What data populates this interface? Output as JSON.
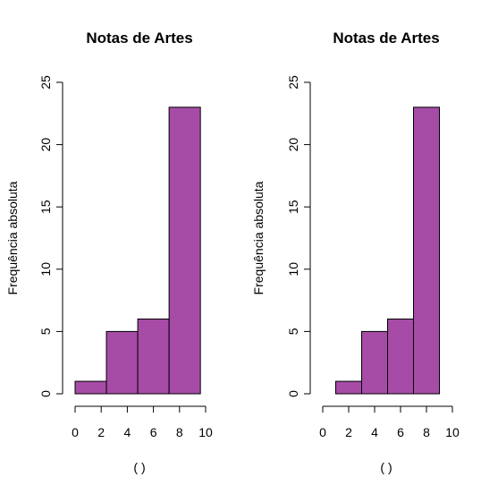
{
  "chart_data": [
    {
      "type": "bar",
      "title": "Notas de Artes",
      "xlabel": "( )",
      "ylabel": "Frequência absoluta",
      "bins": [
        {
          "from": 0,
          "to": 2.4,
          "value": 1
        },
        {
          "from": 2.4,
          "to": 4.8,
          "value": 5
        },
        {
          "from": 4.8,
          "to": 7.2,
          "value": 6
        },
        {
          "from": 7.2,
          "to": 9.6,
          "value": 23
        }
      ],
      "xlim": [
        0,
        10
      ],
      "ylim": [
        0,
        25
      ],
      "xticks": [
        0,
        2,
        4,
        6,
        8,
        10
      ],
      "yticks": [
        0,
        5,
        10,
        15,
        20,
        25
      ],
      "bar_color": "#a64ca6",
      "grid": false
    },
    {
      "type": "bar",
      "title": "Notas de Artes",
      "xlabel": "( )",
      "ylabel": "Frequência absoluta",
      "bins": [
        {
          "from": 1,
          "to": 3,
          "value": 1
        },
        {
          "from": 3,
          "to": 5,
          "value": 5
        },
        {
          "from": 5,
          "to": 7,
          "value": 6
        },
        {
          "from": 7,
          "to": 9,
          "value": 23
        }
      ],
      "xlim": [
        0,
        10
      ],
      "ylim": [
        0,
        25
      ],
      "xticks": [
        0,
        2,
        4,
        6,
        8,
        10
      ],
      "yticks": [
        0,
        5,
        10,
        15,
        20,
        25
      ],
      "bar_color": "#a64ca6",
      "grid": false
    }
  ]
}
